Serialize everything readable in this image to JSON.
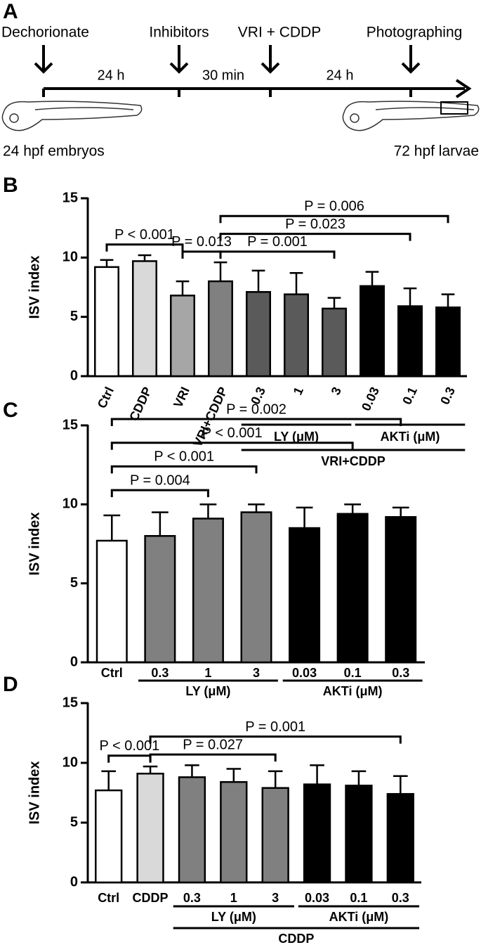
{
  "timeline": {
    "label": "A",
    "steps": [
      "Dechorionate",
      "Inhibitors",
      "VRI + CDDP",
      "Photographing"
    ],
    "intervals": [
      "24 h",
      "30 min",
      "24 h"
    ],
    "start_caption": "24 hpf embryos",
    "end_caption": "72 hpf larvae"
  },
  "chart_data": [
    {
      "type": "bar",
      "label": "B",
      "ylabel": "ISV index",
      "ylim": [
        0,
        15
      ],
      "yticks": [
        0,
        5,
        10,
        15
      ],
      "categories": [
        "Ctrl",
        "CDDP",
        "VRI",
        "VRI+CDDP",
        "0.3",
        "1",
        "3",
        "0.03",
        "0.1",
        "0.3"
      ],
      "values": [
        9.2,
        9.7,
        6.8,
        8.0,
        7.1,
        6.9,
        5.7,
        7.6,
        5.9,
        5.8
      ],
      "errors": [
        0.6,
        0.5,
        1.2,
        1.6,
        1.8,
        1.8,
        0.9,
        1.2,
        1.5,
        1.1
      ],
      "colors": [
        "#ffffff",
        "#d9d9d9",
        "#a6a6a6",
        "#808080",
        "#5a5a5a",
        "#5a5a5a",
        "#5a5a5a",
        "#000000",
        "#000000",
        "#000000"
      ],
      "groups": [
        {
          "name": "LY (μM)",
          "from": 4,
          "to": 6
        },
        {
          "name": "AKTi (μM)",
          "from": 7,
          "to": 9
        },
        {
          "name": "VRI+CDDP",
          "from": 4,
          "to": 9
        }
      ],
      "comparisons": [
        {
          "from": 0,
          "to": 2,
          "label": "P < 0.001"
        },
        {
          "from": 2,
          "to": 3,
          "label": "P = 0.013"
        },
        {
          "from": 3,
          "to": 6,
          "label": "P = 0.001"
        },
        {
          "from": 3,
          "to": 8,
          "label": "P = 0.023"
        },
        {
          "from": 3,
          "to": 9,
          "label": "P = 0.006"
        }
      ]
    },
    {
      "type": "bar",
      "label": "C",
      "ylabel": "ISV index",
      "ylim": [
        0,
        15
      ],
      "yticks": [
        0,
        5,
        10,
        15
      ],
      "categories": [
        "Ctrl",
        "0.3",
        "1",
        "3",
        "0.03",
        "0.1",
        "0.3"
      ],
      "values": [
        7.7,
        8.0,
        9.1,
        9.5,
        8.5,
        9.4,
        9.2
      ],
      "errors": [
        1.6,
        1.5,
        0.9,
        0.5,
        1.3,
        0.6,
        0.6
      ],
      "colors": [
        "#ffffff",
        "#808080",
        "#808080",
        "#808080",
        "#000000",
        "#000000",
        "#000000"
      ],
      "groups": [
        {
          "name": "LY (μM)",
          "from": 1,
          "to": 3
        },
        {
          "name": "AKTi (μM)",
          "from": 4,
          "to": 6
        }
      ],
      "comparisons": [
        {
          "from": 0,
          "to": 2,
          "label": "P = 0.004"
        },
        {
          "from": 0,
          "to": 3,
          "label": "P < 0.001"
        },
        {
          "from": 0,
          "to": 5,
          "label": "P < 0.001"
        },
        {
          "from": 0,
          "to": 6,
          "label": "P = 0.002"
        }
      ]
    },
    {
      "type": "bar",
      "label": "D",
      "ylabel": "ISV index",
      "ylim": [
        0,
        15
      ],
      "yticks": [
        0,
        5,
        10,
        15
      ],
      "categories": [
        "Ctrl",
        "CDDP",
        "0.3",
        "1",
        "3",
        "0.03",
        "0.1",
        "0.3"
      ],
      "values": [
        7.7,
        9.1,
        8.8,
        8.4,
        7.9,
        8.2,
        8.1,
        7.4
      ],
      "errors": [
        1.6,
        0.6,
        1.0,
        1.1,
        1.4,
        1.6,
        1.2,
        1.5
      ],
      "colors": [
        "#ffffff",
        "#d9d9d9",
        "#808080",
        "#808080",
        "#808080",
        "#000000",
        "#000000",
        "#000000"
      ],
      "groups": [
        {
          "name": "LY (μM)",
          "from": 2,
          "to": 4
        },
        {
          "name": "AKTi (μM)",
          "from": 5,
          "to": 7
        },
        {
          "name": "CDDP",
          "from": 2,
          "to": 7
        }
      ],
      "comparisons": [
        {
          "from": 0,
          "to": 1,
          "label": "P < 0.001"
        },
        {
          "from": 1,
          "to": 4,
          "label": "P = 0.027"
        },
        {
          "from": 1,
          "to": 7,
          "label": "P = 0.001"
        }
      ]
    }
  ]
}
